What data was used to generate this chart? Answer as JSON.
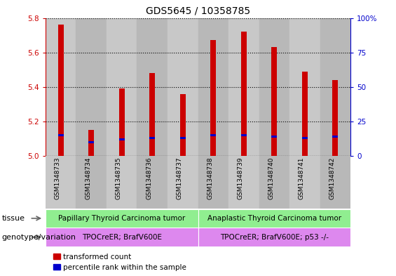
{
  "title": "GDS5645 / 10358785",
  "samples": [
    "GSM1348733",
    "GSM1348734",
    "GSM1348735",
    "GSM1348736",
    "GSM1348737",
    "GSM1348738",
    "GSM1348739",
    "GSM1348740",
    "GSM1348741",
    "GSM1348742"
  ],
  "transformed_count": [
    5.76,
    5.15,
    5.39,
    5.48,
    5.36,
    5.67,
    5.72,
    5.63,
    5.49,
    5.44
  ],
  "percentile_rank": [
    15,
    10,
    12,
    13,
    13,
    15,
    15,
    14,
    13,
    14
  ],
  "ylim_left": [
    5.0,
    5.8
  ],
  "ylim_right": [
    0,
    100
  ],
  "yticks_left": [
    5.0,
    5.2,
    5.4,
    5.6,
    5.8
  ],
  "yticks_right": [
    0,
    25,
    50,
    75,
    100
  ],
  "bar_color": "#cc0000",
  "percentile_color": "#0000cc",
  "bar_width": 0.18,
  "tissue_group1": "Papillary Thyroid Carcinoma tumor",
  "tissue_group2": "Anaplastic Thyroid Carcinoma tumor",
  "tissue_color": "#90ee90",
  "genotype_group1": "TPOCreER; BrafV600E",
  "genotype_group2": "TPOCreER; BrafV600E; p53 -/-",
  "genotype_color": "#dd88ee",
  "group1_count": 5,
  "group2_count": 5,
  "legend_red": "transformed count",
  "legend_blue": "percentile rank within the sample",
  "left_axis_color": "#cc0000",
  "right_axis_color": "#0000cc",
  "col_colors": [
    "#c8c8c8",
    "#b8b8b8"
  ],
  "title_fontsize": 10,
  "tick_fontsize": 7.5,
  "sample_fontsize": 6.5,
  "annotation_fontsize": 7.5,
  "label_fontsize": 8
}
